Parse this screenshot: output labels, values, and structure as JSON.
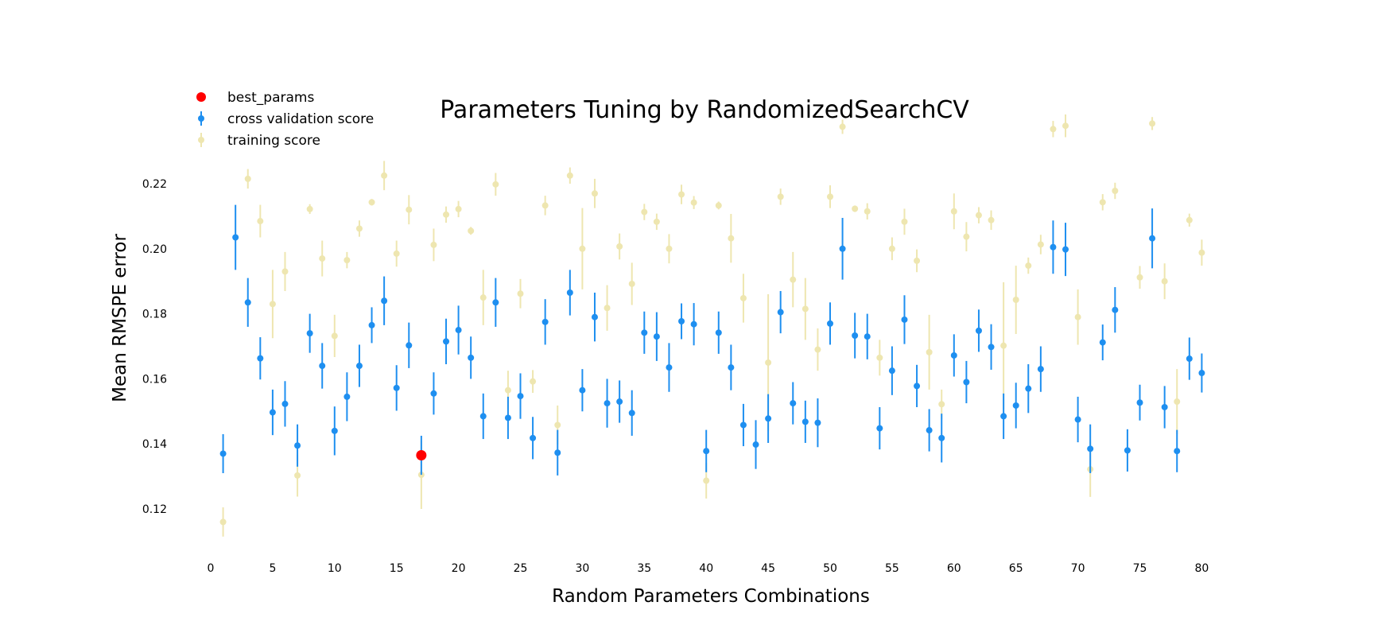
{
  "chart_data": {
    "type": "scatter",
    "title": "Parameters Tuning by RandomizedSearchCV",
    "xlabel": "Random Parameters Combinations",
    "ylabel": "Mean RMSPE error",
    "xlim": [
      0,
      80
    ],
    "ylim": [
      0.105,
      0.245
    ],
    "xticks": [
      "0",
      "5",
      "10",
      "15",
      "20",
      "25",
      "30",
      "35",
      "40",
      "45",
      "50",
      "55",
      "60",
      "65",
      "70",
      "75",
      "80"
    ],
    "yticks": [
      "0.12",
      "0.14",
      "0.16",
      "0.18",
      "0.20",
      "0.22"
    ],
    "grid": false,
    "legend_position": "top-left",
    "colors": {
      "best_params": "#ff0000",
      "cross_validation": "#1e8ff0",
      "training": "#eee6b0"
    },
    "legend": [
      {
        "label": "best_params",
        "key": "best"
      },
      {
        "label": "cross validation score",
        "key": "cv"
      },
      {
        "label": "training score",
        "key": "train"
      }
    ],
    "best_params": {
      "x": 17,
      "y": 0.1365
    },
    "series": [
      {
        "name": "cross validation score",
        "x": [
          1,
          2,
          3,
          4,
          5,
          6,
          7,
          8,
          9,
          10,
          11,
          12,
          13,
          14,
          15,
          16,
          17,
          18,
          19,
          20,
          21,
          22,
          23,
          24,
          25,
          26,
          27,
          28,
          29,
          30,
          31,
          32,
          33,
          34,
          35,
          36,
          37,
          38,
          39,
          40,
          41,
          42,
          43,
          44,
          45,
          46,
          47,
          48,
          49,
          50,
          51,
          52,
          53,
          54,
          55,
          56,
          57,
          58,
          59,
          60,
          61,
          62,
          63,
          64,
          65,
          66,
          67,
          68,
          69,
          70,
          71,
          72,
          73,
          74,
          75,
          76,
          77,
          78,
          79,
          80
        ],
        "y": [
          0.137,
          0.2035,
          0.1835,
          0.1663,
          0.1497,
          0.1523,
          0.1395,
          0.174,
          0.164,
          0.144,
          0.1545,
          0.164,
          0.1765,
          0.184,
          0.1572,
          0.1703,
          0.1365,
          0.1555,
          0.1715,
          0.175,
          0.1665,
          0.1485,
          0.1835,
          0.148,
          0.1547,
          0.1418,
          0.1775,
          0.1373,
          0.1865,
          0.1565,
          0.179,
          0.1525,
          0.153,
          0.1495,
          0.1742,
          0.173,
          0.1635,
          0.1777,
          0.1768,
          0.1378,
          0.1742,
          0.1635,
          0.1458,
          0.1398,
          0.1478,
          0.1805,
          0.1525,
          0.1468,
          0.1465,
          0.177,
          0.2,
          0.1733,
          0.173,
          0.1448,
          0.1625,
          0.1782,
          0.1578,
          0.1442,
          0.1418,
          0.1672,
          0.159,
          0.1748,
          0.1698,
          0.1485,
          0.1518,
          0.157,
          0.163,
          0.2005,
          0.1998,
          0.1475,
          0.1385,
          0.1712,
          0.1812,
          0.138,
          0.1527,
          0.2032,
          0.1513,
          0.1378,
          0.1662,
          0.1618
        ],
        "err": [
          0.006,
          0.01,
          0.0075,
          0.0065,
          0.007,
          0.007,
          0.0065,
          0.006,
          0.007,
          0.0075,
          0.0075,
          0.0065,
          0.0055,
          0.0075,
          0.007,
          0.007,
          0.006,
          0.0065,
          0.007,
          0.0075,
          0.0065,
          0.007,
          0.0075,
          0.0065,
          0.007,
          0.0065,
          0.007,
          0.007,
          0.007,
          0.0065,
          0.0075,
          0.0075,
          0.0065,
          0.007,
          0.0065,
          0.0075,
          0.0075,
          0.0055,
          0.0065,
          0.0065,
          0.0065,
          0.007,
          0.0065,
          0.0075,
          0.0075,
          0.0065,
          0.0065,
          0.0065,
          0.0075,
          0.0065,
          0.0095,
          0.007,
          0.007,
          0.0065,
          0.0075,
          0.0075,
          0.0065,
          0.0065,
          0.0075,
          0.0065,
          0.0065,
          0.0065,
          0.007,
          0.007,
          0.007,
          0.0075,
          0.007,
          0.0082,
          0.0082,
          0.007,
          0.0075,
          0.0055,
          0.007,
          0.0065,
          0.0055,
          0.0092,
          0.0065,
          0.0065,
          0.0065,
          0.006
        ]
      },
      {
        "name": "training score",
        "x": [
          1,
          3,
          4,
          5,
          6,
          7,
          8,
          9,
          10,
          11,
          12,
          13,
          14,
          15,
          16,
          17,
          18,
          19,
          20,
          21,
          22,
          23,
          24,
          25,
          26,
          27,
          28,
          29,
          30,
          31,
          32,
          33,
          34,
          35,
          36,
          37,
          38,
          39,
          40,
          41,
          42,
          43,
          45,
          46,
          47,
          48,
          49,
          50,
          51,
          52,
          53,
          54,
          55,
          56,
          57,
          58,
          59,
          60,
          61,
          62,
          63,
          64,
          65,
          66,
          67,
          68,
          69,
          70,
          71,
          72,
          73,
          75,
          76,
          77,
          78,
          79,
          80
        ],
        "y": [
          0.116,
          0.2215,
          0.2085,
          0.183,
          0.193,
          0.1303,
          0.2122,
          0.197,
          0.1732,
          0.1965,
          0.2062,
          0.2143,
          0.2225,
          0.1985,
          0.212,
          0.1305,
          0.2012,
          0.2105,
          0.2122,
          0.2055,
          0.185,
          0.2198,
          0.1565,
          0.1862,
          0.1592,
          0.2133,
          0.1458,
          0.2225,
          0.2,
          0.217,
          0.1818,
          0.2007,
          0.1892,
          0.2113,
          0.2083,
          0.2,
          0.2167,
          0.2142,
          0.1287,
          0.2133,
          0.2032,
          0.1848,
          0.165,
          0.216,
          0.1905,
          0.1815,
          0.169,
          0.216,
          0.2375,
          0.2123,
          0.2115,
          0.1665,
          0.2,
          0.2083,
          0.1963,
          0.1682,
          0.1522,
          0.2115,
          0.2037,
          0.2103,
          0.2088,
          0.1702,
          0.1843,
          0.1948,
          0.2013,
          0.2368,
          0.2378,
          0.179,
          0.1322,
          0.2143,
          0.2178,
          0.1912,
          0.2385,
          0.19,
          0.153,
          0.2088,
          0.1988
        ],
        "err": [
          0.0045,
          0.003,
          0.005,
          0.0105,
          0.006,
          0.0065,
          0.0015,
          0.0055,
          0.0065,
          0.0025,
          0.0025,
          0.001,
          0.0045,
          0.004,
          0.0045,
          0.0105,
          0.005,
          0.0025,
          0.0025,
          0.0012,
          0.0085,
          0.0035,
          0.006,
          0.0045,
          0.0035,
          0.003,
          0.006,
          0.0025,
          0.0125,
          0.0045,
          0.007,
          0.004,
          0.0065,
          0.0025,
          0.0025,
          0.0045,
          0.003,
          0.002,
          0.0055,
          0.0012,
          0.0075,
          0.0075,
          0.021,
          0.0025,
          0.0085,
          0.0095,
          0.0065,
          0.0035,
          0.0022,
          0.001,
          0.0025,
          0.0055,
          0.0035,
          0.004,
          0.0035,
          0.0115,
          0.0045,
          0.0055,
          0.0045,
          0.0025,
          0.003,
          0.0195,
          0.0105,
          0.0025,
          0.003,
          0.0025,
          0.0035,
          0.0085,
          0.0085,
          0.0025,
          0.0025,
          0.0035,
          0.002,
          0.0055,
          0.01,
          0.002,
          0.004
        ]
      }
    ]
  }
}
